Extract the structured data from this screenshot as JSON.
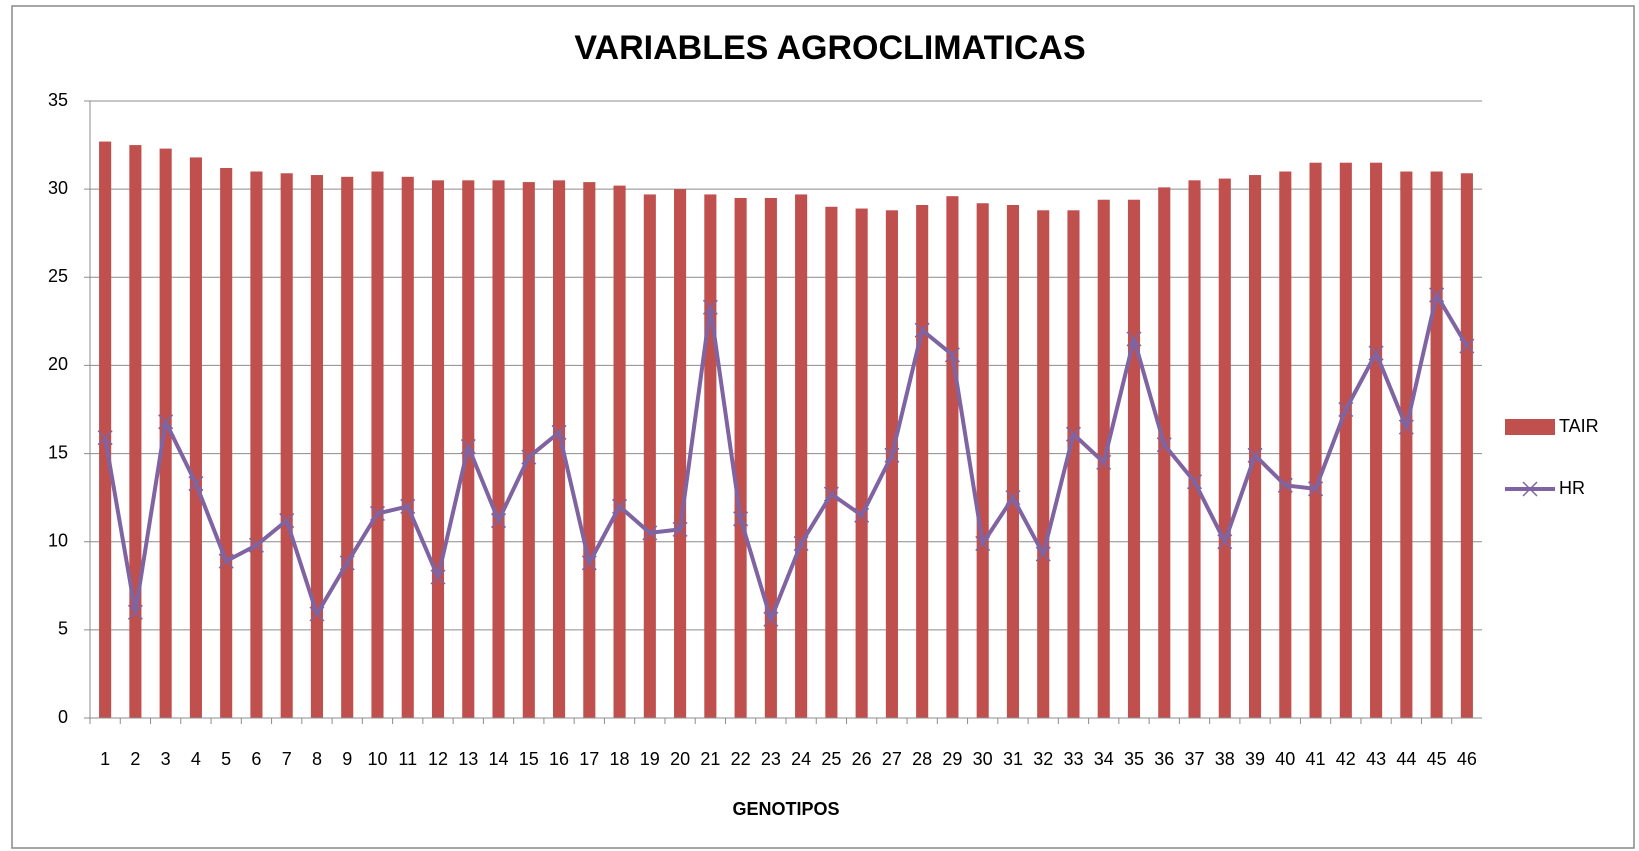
{
  "chart_data": {
    "type": "bar-line",
    "title": "VARIABLES AGROCLIMATICAS",
    "x_label": "GENOTIPOS",
    "categories": [
      "1",
      "2",
      "3",
      "4",
      "5",
      "6",
      "7",
      "8",
      "9",
      "10",
      "11",
      "12",
      "13",
      "14",
      "15",
      "16",
      "17",
      "18",
      "19",
      "20",
      "21",
      "22",
      "23",
      "24",
      "25",
      "26",
      "27",
      "28",
      "29",
      "30",
      "31",
      "32",
      "33",
      "34",
      "35",
      "36",
      "37",
      "38",
      "39",
      "40",
      "41",
      "42",
      "43",
      "44",
      "45",
      "46"
    ],
    "series": [
      {
        "name": "TAIR",
        "type": "bar",
        "color": "#c0504d",
        "values": [
          32.7,
          32.5,
          32.3,
          31.8,
          31.2,
          31.0,
          30.9,
          30.8,
          30.7,
          31.0,
          30.7,
          30.5,
          30.5,
          30.5,
          30.4,
          30.5,
          30.4,
          30.2,
          29.7,
          30.0,
          29.7,
          29.5,
          29.5,
          29.7,
          29.0,
          28.9,
          28.8,
          29.1,
          29.6,
          29.2,
          29.1,
          28.8,
          28.8,
          29.4,
          29.4,
          30.1,
          30.5,
          30.6,
          30.8,
          31.0,
          31.5,
          31.5,
          31.5,
          31.0,
          31.0,
          30.9
        ]
      },
      {
        "name": "HR",
        "type": "line",
        "color": "#8064a2",
        "values": [
          15.9,
          6.0,
          16.8,
          13.3,
          8.9,
          9.8,
          11.2,
          5.9,
          8.8,
          11.6,
          12.0,
          8.0,
          15.4,
          11.2,
          14.8,
          16.2,
          8.8,
          12.0,
          10.5,
          10.7,
          23.3,
          11.3,
          5.6,
          9.9,
          12.7,
          11.5,
          14.9,
          22.0,
          20.6,
          9.9,
          12.5,
          9.3,
          16.1,
          14.5,
          21.5,
          15.5,
          13.4,
          10.0,
          14.9,
          13.2,
          13.0,
          17.5,
          20.7,
          16.5,
          24.0,
          21.1
        ]
      }
    ],
    "ylim": [
      0,
      35
    ],
    "yticks": [
      0,
      5,
      10,
      15,
      20,
      25,
      30,
      35
    ],
    "grid": true,
    "legend": "right"
  }
}
